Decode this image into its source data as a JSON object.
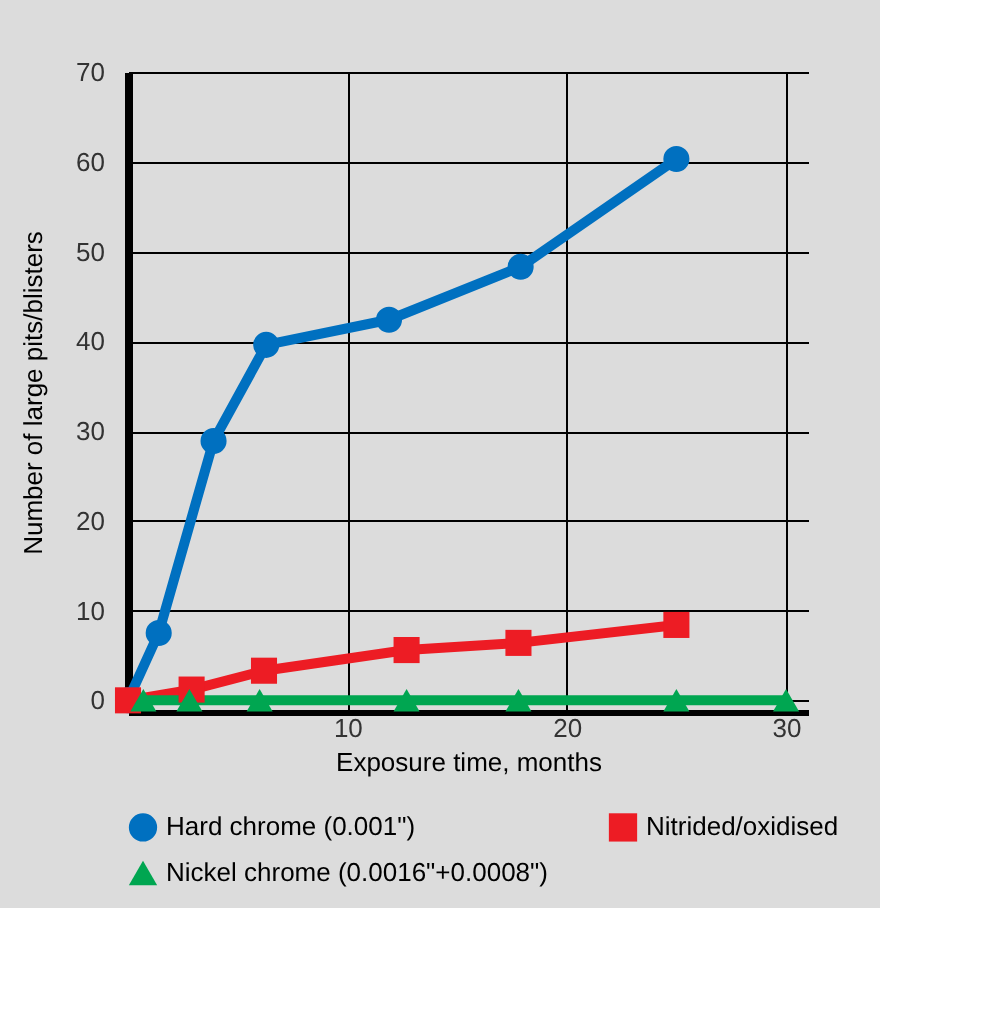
{
  "chart_data": {
    "type": "line",
    "xlabel": "Exposure time, months",
    "ylabel": "Number of large pits/blisters",
    "xlim": [
      0,
      31
    ],
    "ylim": [
      -1.3,
      70
    ],
    "xticks": [
      10,
      20,
      30
    ],
    "yticks": [
      0,
      10,
      20,
      30,
      40,
      50,
      60,
      70
    ],
    "grid": true,
    "legend": "bottom",
    "line_style": "solid",
    "series": [
      {
        "name": "Hard chrome (0.001\")",
        "color": "#0070c0",
        "marker": "circle",
        "x": [
          0,
          1.4,
          3.9,
          6.3,
          11.9,
          17.9,
          25.0
        ],
        "values": [
          0,
          7.5,
          28.9,
          39.6,
          42.4,
          48.3,
          60.3
        ]
      },
      {
        "name": "Nitrided/oxidised",
        "color": "#ed1c24",
        "marker": "square",
        "x": [
          0,
          2.9,
          6.2,
          12.7,
          17.8,
          25.0
        ],
        "values": [
          0,
          1.2,
          3.3,
          5.6,
          6.4,
          8.4
        ]
      },
      {
        "name": "Nickel chrome (0.0016\"+0.0008\")",
        "color": "#00a651",
        "marker": "triangle",
        "x": [
          0.7,
          2.8,
          6.0,
          12.7,
          17.8,
          25.0,
          30
        ],
        "values": [
          0,
          0,
          0,
          0,
          0,
          0,
          0
        ]
      }
    ]
  }
}
